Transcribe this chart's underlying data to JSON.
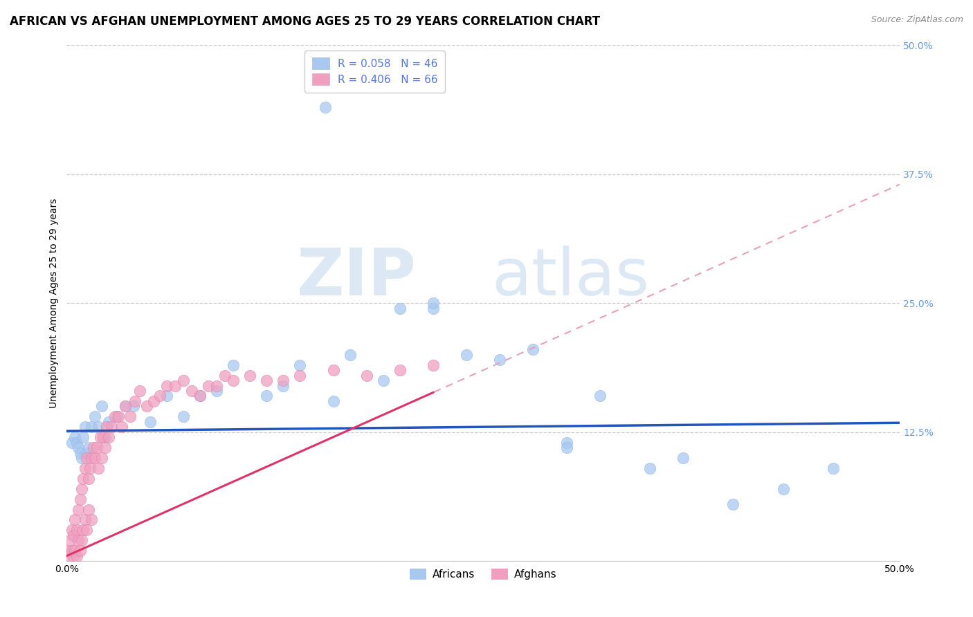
{
  "title": "AFRICAN VS AFGHAN UNEMPLOYMENT AMONG AGES 25 TO 29 YEARS CORRELATION CHART",
  "source": "Source: ZipAtlas.com",
  "ylabel": "Unemployment Among Ages 25 to 29 years",
  "xlim": [
    0.0,
    0.5
  ],
  "ylim": [
    0.0,
    0.5
  ],
  "yticks": [
    0.0,
    0.125,
    0.25,
    0.375,
    0.5
  ],
  "yticklabels": [
    "",
    "12.5%",
    "25.0%",
    "37.5%",
    "50.0%"
  ],
  "legend_label1": "R = 0.058   N = 46",
  "legend_label2": "R = 0.406   N = 66",
  "africans_color": "#a8c8f0",
  "afghans_color": "#f0a0bf",
  "trendline_african_color": "#2255bb",
  "trendline_afghan_color": "#dd3366",
  "trendline_afghan_dashed_color": "#e8a0b8",
  "legend_text_color": "#5577dd",
  "watermark_color": "#dde8f5",
  "grid_color": "#cccccc",
  "background_color": "#ffffff",
  "title_fontsize": 12,
  "axis_label_fontsize": 10,
  "tick_fontsize": 10,
  "right_tick_color": "#6699dd",
  "africans_x": [
    0.003,
    0.005,
    0.006,
    0.007,
    0.008,
    0.009,
    0.01,
    0.011,
    0.012,
    0.013,
    0.015,
    0.017,
    0.019,
    0.021,
    0.023,
    0.025,
    0.03,
    0.035,
    0.04,
    0.05,
    0.06,
    0.07,
    0.08,
    0.09,
    0.1,
    0.12,
    0.13,
    0.14,
    0.16,
    0.17,
    0.19,
    0.2,
    0.22,
    0.24,
    0.26,
    0.28,
    0.3,
    0.32,
    0.35,
    0.37,
    0.4,
    0.43,
    0.46,
    0.155,
    0.22,
    0.3
  ],
  "africans_y": [
    0.115,
    0.12,
    0.115,
    0.11,
    0.105,
    0.1,
    0.12,
    0.13,
    0.105,
    0.11,
    0.13,
    0.14,
    0.13,
    0.15,
    0.12,
    0.135,
    0.14,
    0.15,
    0.15,
    0.135,
    0.16,
    0.14,
    0.16,
    0.165,
    0.19,
    0.16,
    0.17,
    0.19,
    0.155,
    0.2,
    0.175,
    0.245,
    0.245,
    0.2,
    0.195,
    0.205,
    0.115,
    0.16,
    0.09,
    0.1,
    0.055,
    0.07,
    0.09,
    0.44,
    0.25,
    0.11
  ],
  "afghans_x": [
    0.001,
    0.002,
    0.002,
    0.003,
    0.003,
    0.004,
    0.004,
    0.005,
    0.005,
    0.006,
    0.006,
    0.007,
    0.007,
    0.008,
    0.008,
    0.009,
    0.009,
    0.01,
    0.01,
    0.011,
    0.011,
    0.012,
    0.012,
    0.013,
    0.013,
    0.014,
    0.015,
    0.015,
    0.016,
    0.017,
    0.018,
    0.019,
    0.02,
    0.021,
    0.022,
    0.023,
    0.024,
    0.025,
    0.027,
    0.029,
    0.031,
    0.033,
    0.035,
    0.038,
    0.041,
    0.044,
    0.048,
    0.052,
    0.056,
    0.06,
    0.065,
    0.07,
    0.075,
    0.08,
    0.085,
    0.09,
    0.095,
    0.1,
    0.11,
    0.12,
    0.13,
    0.14,
    0.16,
    0.18,
    0.2,
    0.22
  ],
  "afghans_y": [
    0.01,
    0.02,
    0.005,
    0.03,
    0.01,
    0.025,
    0.005,
    0.04,
    0.01,
    0.03,
    0.005,
    0.05,
    0.02,
    0.06,
    0.01,
    0.07,
    0.02,
    0.08,
    0.03,
    0.09,
    0.04,
    0.1,
    0.03,
    0.08,
    0.05,
    0.09,
    0.1,
    0.04,
    0.11,
    0.1,
    0.11,
    0.09,
    0.12,
    0.1,
    0.12,
    0.11,
    0.13,
    0.12,
    0.13,
    0.14,
    0.14,
    0.13,
    0.15,
    0.14,
    0.155,
    0.165,
    0.15,
    0.155,
    0.16,
    0.17,
    0.17,
    0.175,
    0.165,
    0.16,
    0.17,
    0.17,
    0.18,
    0.175,
    0.18,
    0.175,
    0.175,
    0.18,
    0.185,
    0.18,
    0.185,
    0.19
  ]
}
